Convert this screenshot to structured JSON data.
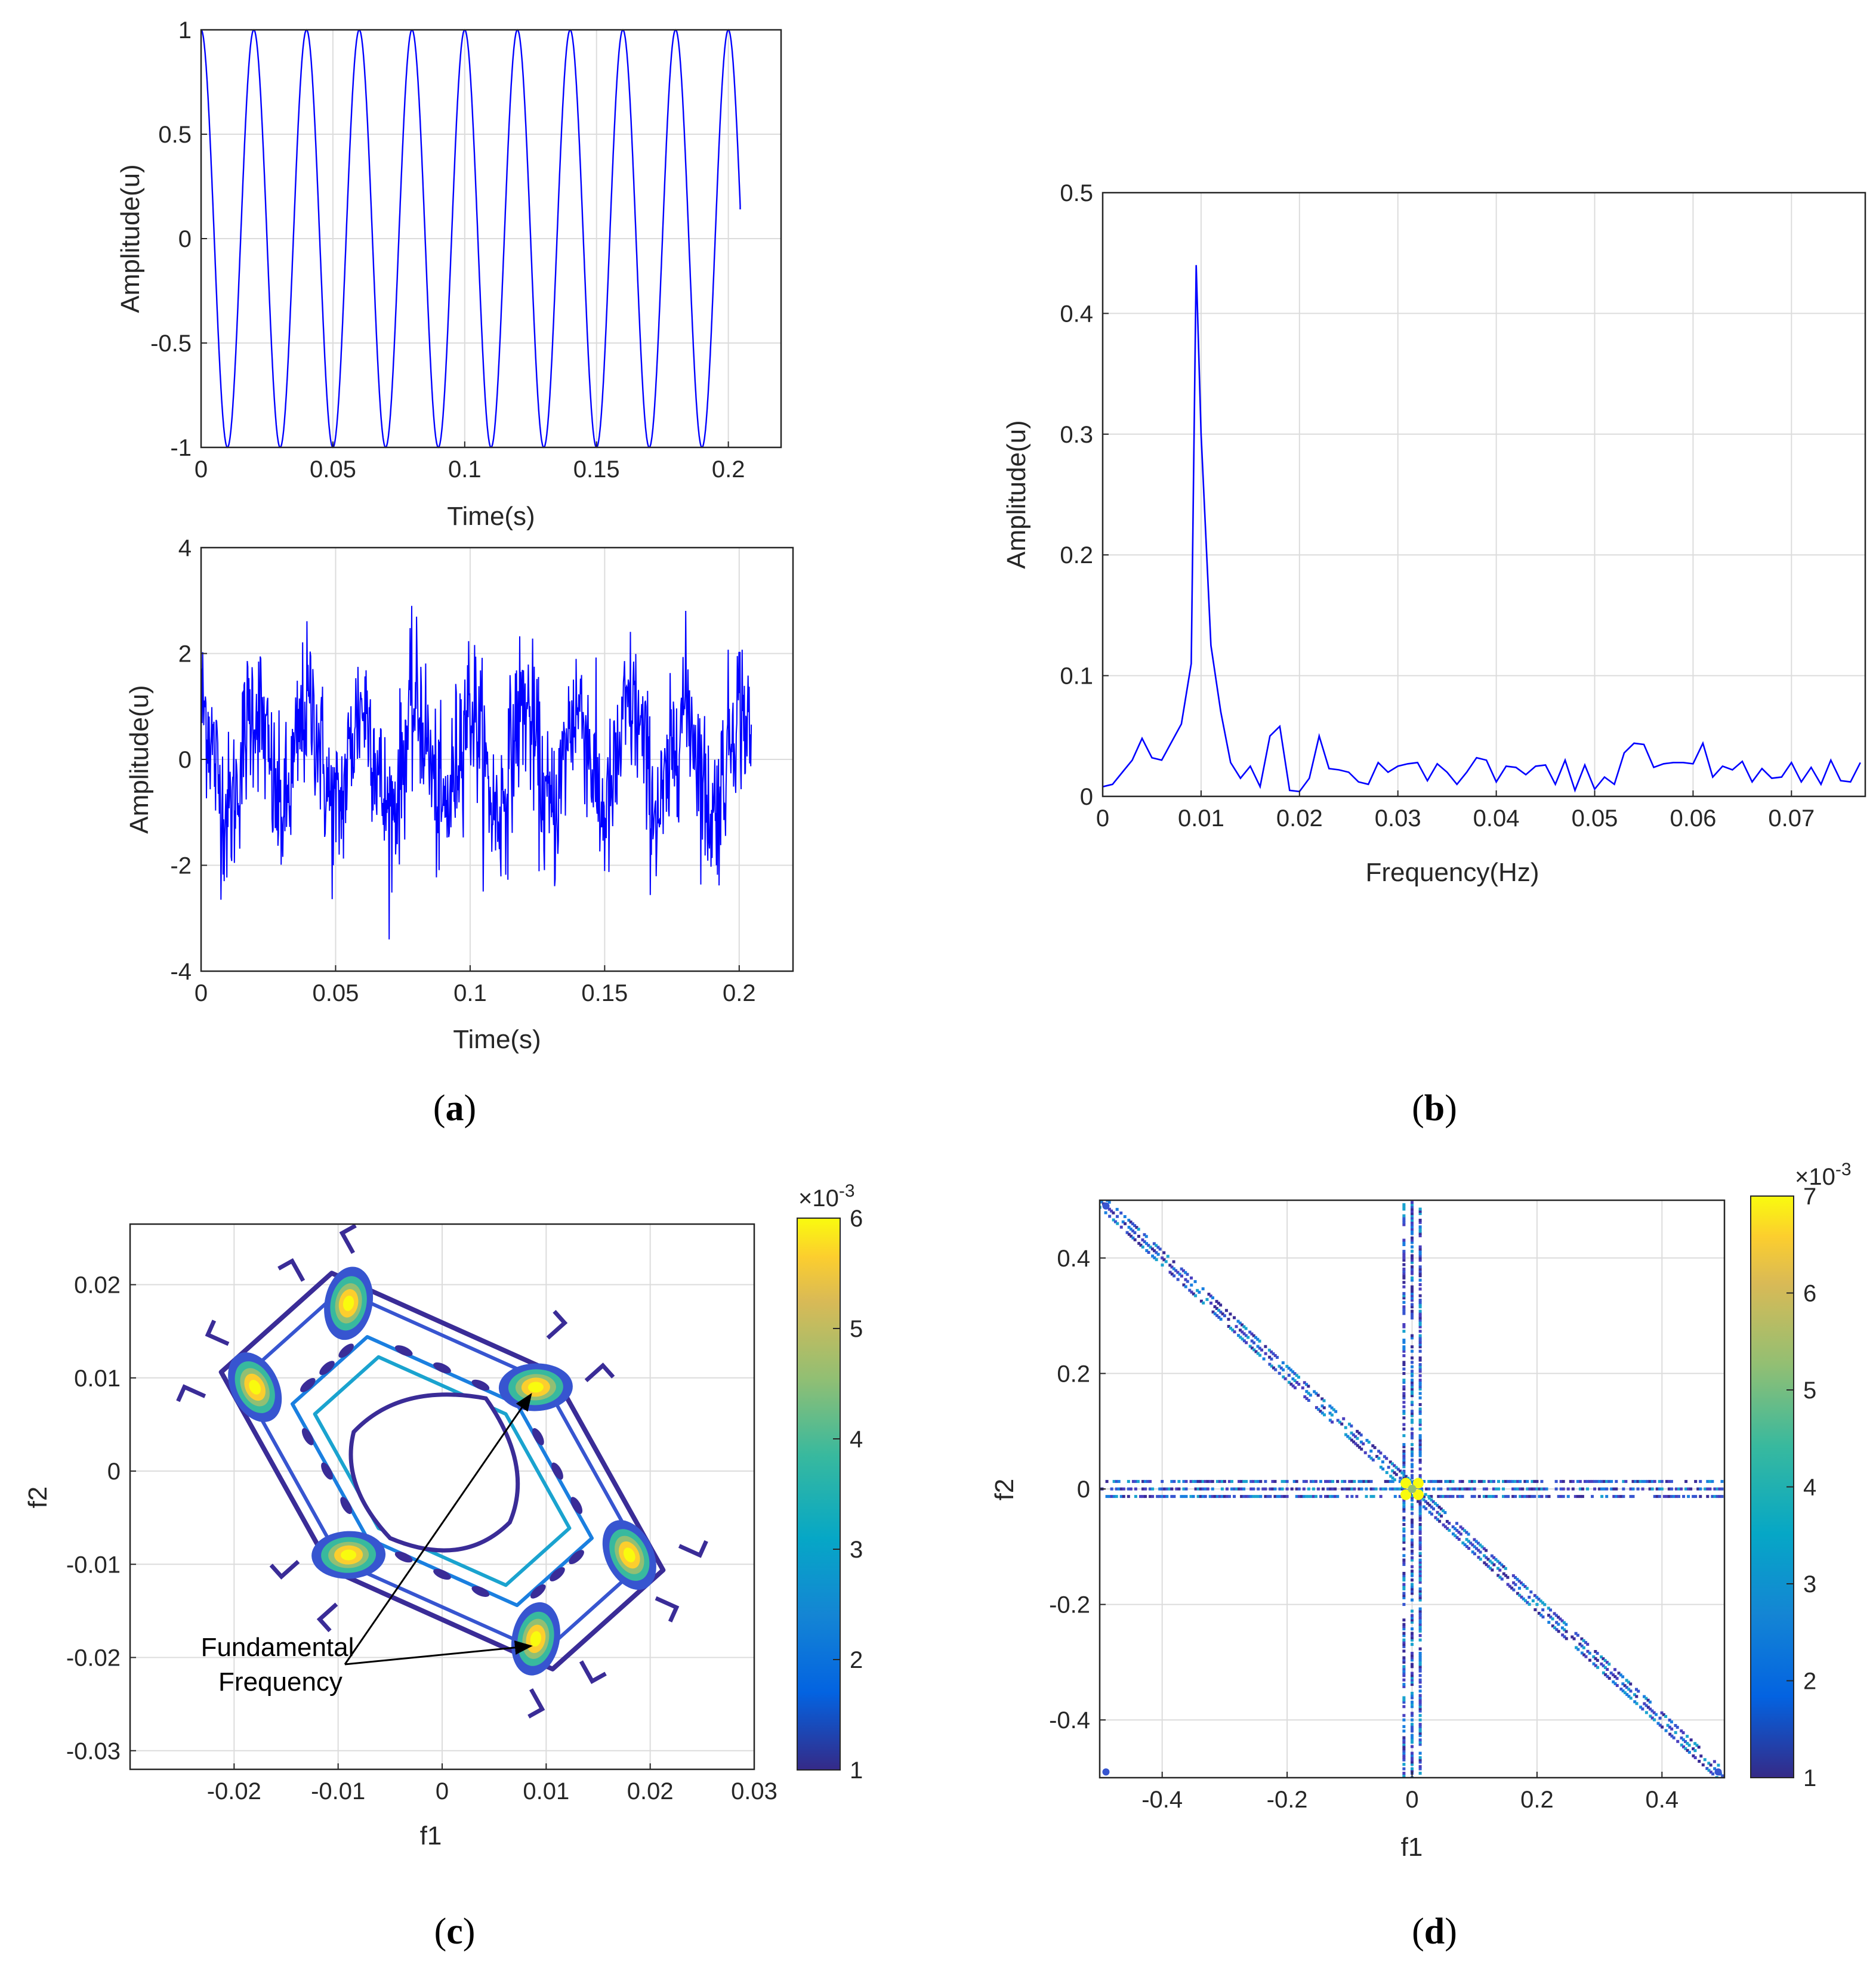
{
  "figure": {
    "panel_labels": [
      "a",
      "b",
      "c",
      "d"
    ]
  },
  "chart_data": [
    {
      "id": "a_top",
      "type": "line",
      "title": "",
      "xlabel": "Time(s)",
      "ylabel": "Amplitude(u)",
      "xlim": [
        0,
        0.22
      ],
      "ylim": [
        -1,
        1
      ],
      "xticks": [
        0,
        0.05,
        0.1,
        0.15,
        0.2
      ],
      "xtick_labels": [
        "0",
        "0.05",
        "0.1",
        "0.15",
        "0.2"
      ],
      "yticks": [
        -1,
        -0.5,
        0,
        0.5,
        1
      ],
      "ytick_labels": [
        "-1",
        "-0.5",
        "0",
        "0.5",
        "1"
      ],
      "signal": {
        "kind": "cosine",
        "frequency_hz": 50,
        "amplitude": 1,
        "t_start": 0,
        "t_end": 0.2045,
        "end_value": 0.14
      },
      "color": "#0000ff",
      "grid": true
    },
    {
      "id": "a_bottom",
      "type": "line",
      "title": "",
      "xlabel": "Time(s)",
      "ylabel": "Amplitude(u)",
      "xlim": [
        0,
        0.22
      ],
      "ylim": [
        -4,
        4
      ],
      "xticks": [
        0,
        0.05,
        0.1,
        0.15,
        0.2
      ],
      "xtick_labels": [
        "0",
        "0.05",
        "0.1",
        "0.15",
        "0.2"
      ],
      "yticks": [
        -4,
        -2,
        0,
        2,
        4
      ],
      "ytick_labels": [
        "-4",
        "-2",
        "0",
        "2",
        "4"
      ],
      "signal": {
        "kind": "cosine plus noise",
        "frequency_hz": 50,
        "amplitude": 1,
        "noise_std": 0.75,
        "t_start": 0,
        "t_end": 0.2045,
        "observed_max": 2.9,
        "observed_min": -3.4
      },
      "color": "#0000ff",
      "grid": true
    },
    {
      "id": "b",
      "type": "line",
      "title": "",
      "xlabel": "Frequency(Hz)",
      "ylabel": "Amplitude(u)",
      "xlim": [
        0,
        0.0775
      ],
      "ylim": [
        0,
        0.5
      ],
      "xticks": [
        0,
        0.01,
        0.02,
        0.03,
        0.04,
        0.05,
        0.06,
        0.07
      ],
      "xtick_labels": [
        "0",
        "0.01",
        "0.02",
        "0.03",
        "0.04",
        "0.05",
        "0.06",
        "0.07"
      ],
      "yticks": [
        0,
        0.1,
        0.2,
        0.3,
        0.4,
        0.5
      ],
      "ytick_labels": [
        "0",
        "0.1",
        "0.2",
        "0.3",
        "0.4",
        "0.5"
      ],
      "x": [
        0,
        0.001,
        0.002,
        0.003,
        0.004,
        0.005,
        0.006,
        0.007,
        0.008,
        0.009,
        0.0095,
        0.01,
        0.011,
        0.012,
        0.013,
        0.014,
        0.015,
        0.016,
        0.017,
        0.018,
        0.019,
        0.02,
        0.021,
        0.022,
        0.023,
        0.024,
        0.025,
        0.026,
        0.027,
        0.028,
        0.029,
        0.03,
        0.031,
        0.032,
        0.033,
        0.034,
        0.035,
        0.036,
        0.037,
        0.038,
        0.039,
        0.04,
        0.041,
        0.042,
        0.043,
        0.044,
        0.045,
        0.046,
        0.047,
        0.048,
        0.049,
        0.05,
        0.051,
        0.052,
        0.053,
        0.054,
        0.055,
        0.056,
        0.057,
        0.058,
        0.059,
        0.06,
        0.061,
        0.062,
        0.063,
        0.064,
        0.065,
        0.066,
        0.067,
        0.068,
        0.069,
        0.07,
        0.071,
        0.072,
        0.073,
        0.074,
        0.075,
        0.076,
        0.077
      ],
      "values": [
        0.008,
        0.01,
        0.02,
        0.03,
        0.048,
        0.032,
        0.03,
        0.045,
        0.06,
        0.11,
        0.44,
        0.3,
        0.125,
        0.07,
        0.028,
        0.015,
        0.025,
        0.008,
        0.05,
        0.058,
        0.005,
        0.004,
        0.015,
        0.05,
        0.023,
        0.022,
        0.02,
        0.012,
        0.01,
        0.028,
        0.02,
        0.025,
        0.027,
        0.028,
        0.013,
        0.027,
        0.02,
        0.01,
        0.02,
        0.032,
        0.03,
        0.012,
        0.025,
        0.024,
        0.018,
        0.025,
        0.026,
        0.01,
        0.03,
        0.005,
        0.026,
        0.006,
        0.016,
        0.01,
        0.036,
        0.044,
        0.043,
        0.024,
        0.027,
        0.028,
        0.028,
        0.027,
        0.044,
        0.016,
        0.025,
        0.022,
        0.029,
        0.012,
        0.023,
        0.015,
        0.016,
        0.028,
        0.012,
        0.024,
        0.01,
        0.03,
        0.013,
        0.012,
        0.028
      ],
      "color": "#0000ff",
      "grid": true
    },
    {
      "id": "c",
      "type": "heatmap",
      "title": "",
      "xlabel": "f1",
      "ylabel": "f2",
      "xlim": [
        -0.03,
        0.03
      ],
      "ylim": [
        -0.032,
        0.0265
      ],
      "xticks": [
        -0.02,
        -0.01,
        0,
        0.01,
        0.02,
        0.03
      ],
      "xtick_labels": [
        "-0.02",
        "-0.01",
        "0",
        "0.01",
        "0.02",
        "0.03"
      ],
      "yticks": [
        -0.03,
        -0.02,
        -0.01,
        0,
        0.01,
        0.02
      ],
      "ytick_labels": [
        "-0.03",
        "-0.02",
        "-0.01",
        "0",
        "0.01",
        "0.02"
      ],
      "peaks": [
        {
          "f1": -0.009,
          "f2": 0.018
        },
        {
          "f1": -0.018,
          "f2": 0.009
        },
        {
          "f1": 0.009,
          "f2": 0.009
        },
        {
          "f1": -0.009,
          "f2": -0.009
        },
        {
          "f1": 0.018,
          "f2": -0.009
        },
        {
          "f1": 0.009,
          "f2": -0.018
        }
      ],
      "annotation": {
        "line1": "Fundamental",
        "line2": "Frequency",
        "targets": [
          {
            "f1": 0.009,
            "f2": 0.009
          },
          {
            "f1": 0.009,
            "f2": -0.018
          }
        ]
      },
      "colorbar": {
        "range": [
          1,
          6
        ],
        "ticks": [
          "1",
          "2",
          "3",
          "4",
          "5",
          "6"
        ],
        "multiplier": "×10",
        "exponent": "-3"
      },
      "colormap": "parula",
      "grid": true
    },
    {
      "id": "d",
      "type": "heatmap",
      "title": "",
      "xlabel": "f1",
      "ylabel": "f2",
      "xlim": [
        -0.5,
        0.5
      ],
      "ylim": [
        -0.5,
        0.5
      ],
      "xticks": [
        -0.4,
        -0.2,
        0,
        0.2,
        0.4
      ],
      "xtick_labels": [
        "-0.4",
        "-0.2",
        "0",
        "0.2",
        "0.4"
      ],
      "yticks": [
        -0.4,
        -0.2,
        0,
        0.2,
        0.4
      ],
      "ytick_labels": [
        "-0.4",
        "-0.2",
        "0",
        "0.2",
        "0.4"
      ],
      "structures": [
        "horizontal band at f2 ≈ 0",
        "vertical band at f1 ≈ 0",
        "anti-diagonal line f2 = -f1",
        "bright center near origin"
      ],
      "colorbar": {
        "range": [
          1,
          7
        ],
        "ticks": [
          "1",
          "2",
          "3",
          "4",
          "5",
          "6",
          "7"
        ],
        "multiplier": "×10",
        "exponent": "-3"
      },
      "colormap": "parula",
      "grid": true
    }
  ]
}
